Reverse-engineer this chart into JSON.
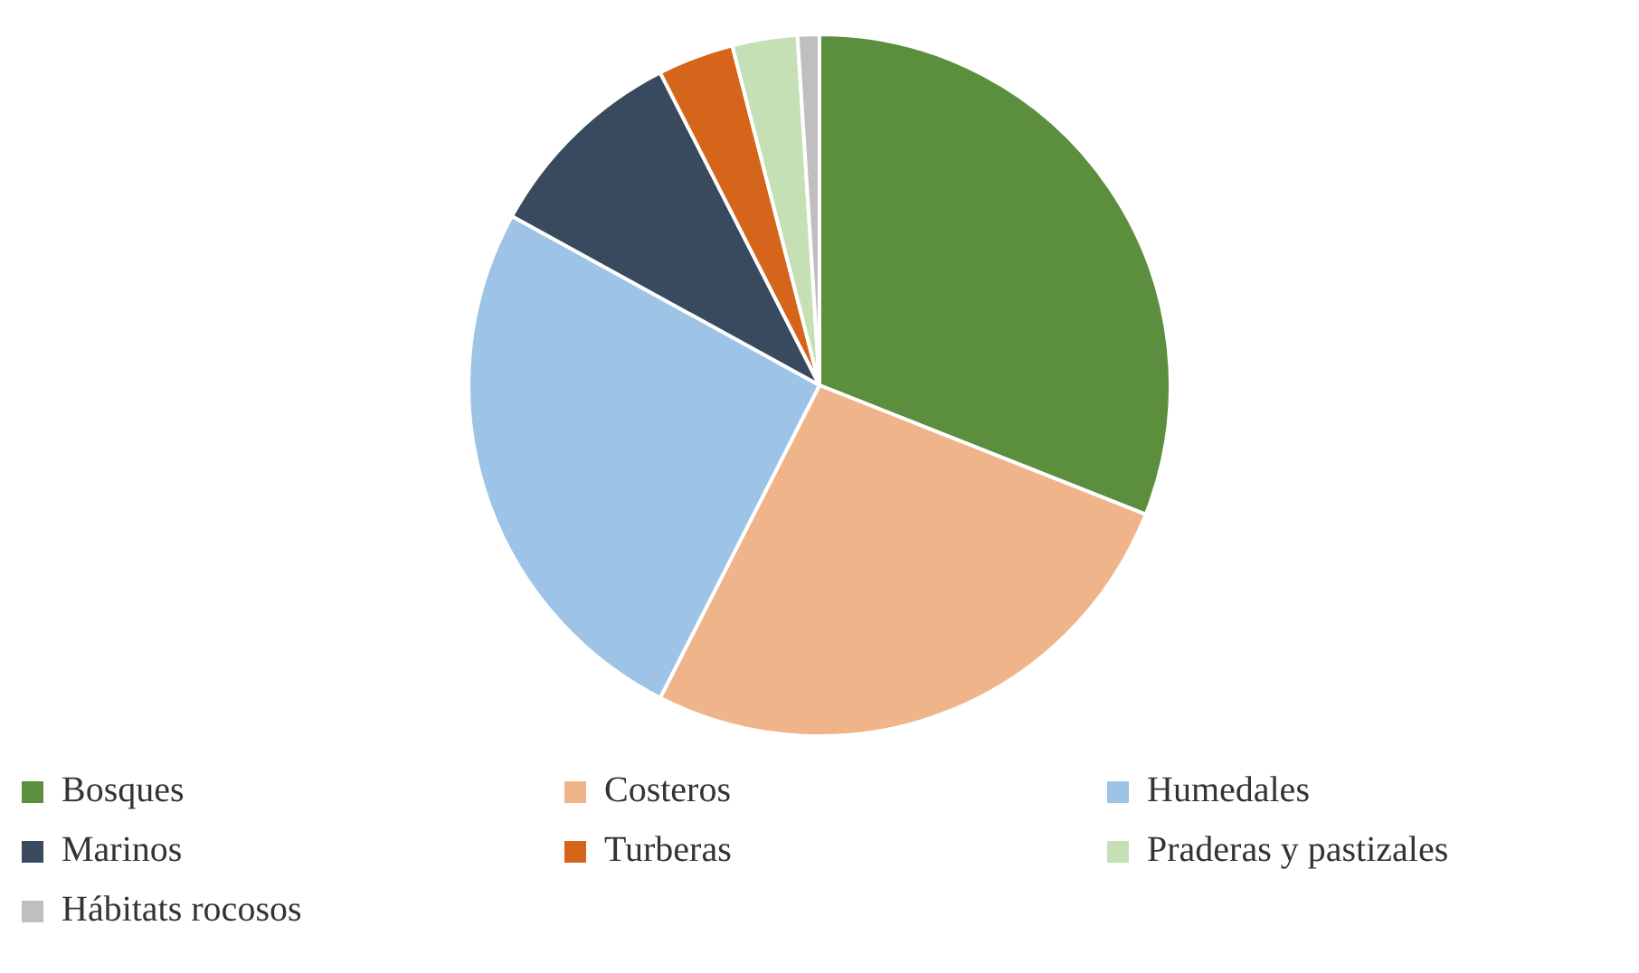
{
  "chart_data": {
    "type": "pie",
    "categories": [
      "Bosques",
      "Costeros",
      "Humedales",
      "Marinos",
      "Turberas",
      "Praderas y pastizales",
      "Hábitats rocosos"
    ],
    "values": [
      31,
      26.5,
      25.5,
      9.5,
      3.5,
      3,
      1
    ],
    "colors": [
      "#5b8f3e",
      "#f0b48a",
      "#9dc3e6",
      "#3a4a5e",
      "#d4651a",
      "#c5e0b4",
      "#bfbfbf"
    ],
    "legend": "bottom"
  }
}
